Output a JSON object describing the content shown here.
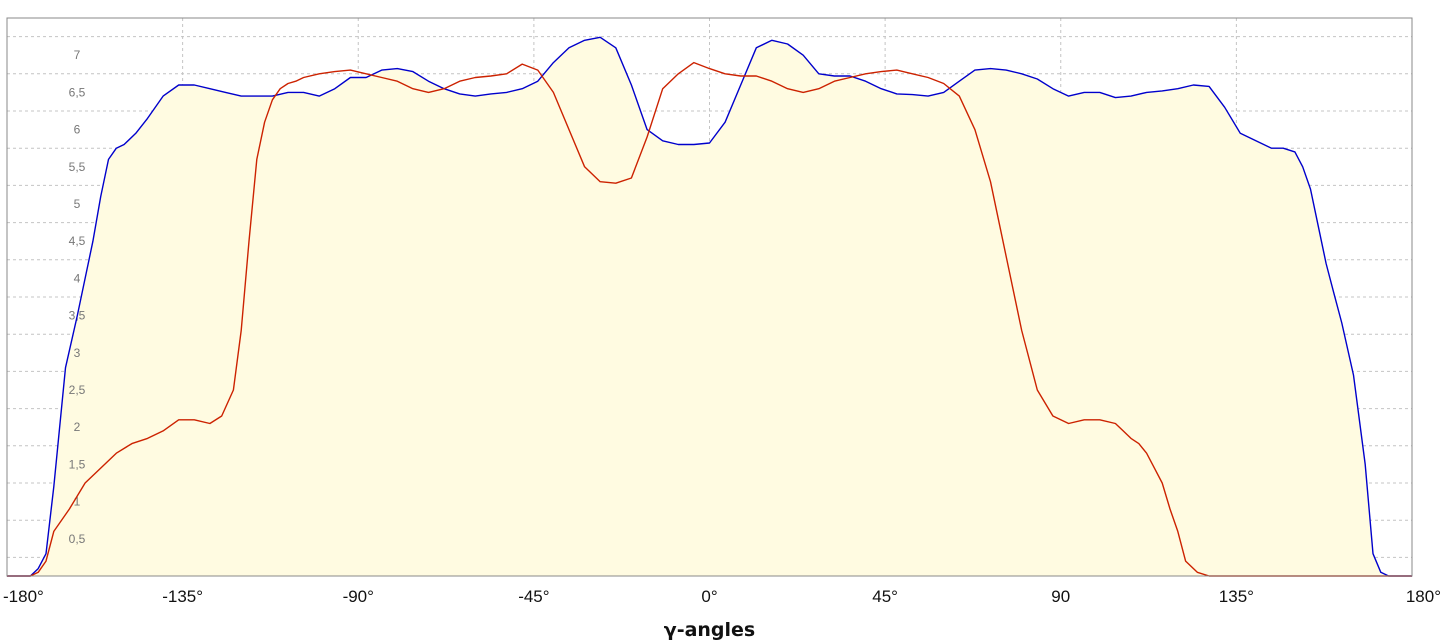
{
  "chart_data": {
    "type": "line",
    "xlabel": "γ-angles",
    "ylabel": "",
    "xlim": [
      -180,
      180
    ],
    "ylim": [
      0,
      7.5
    ],
    "grid": true,
    "legend": "none",
    "fill_color": "#FFFBE1",
    "x_ticks": [
      {
        "value": -180,
        "label": "-180°"
      },
      {
        "value": -135,
        "label": "-135°"
      },
      {
        "value": -90,
        "label": "-90°"
      },
      {
        "value": -45,
        "label": "-45°"
      },
      {
        "value": 0,
        "label": "0°"
      },
      {
        "value": 45,
        "label": "45°"
      },
      {
        "value": 90,
        "label": "90"
      },
      {
        "value": 135,
        "label": "135°"
      },
      {
        "value": 180,
        "label": "180°"
      }
    ],
    "y_ticks": [
      {
        "value": 0.5,
        "label": "0,5"
      },
      {
        "value": 1,
        "label": "1"
      },
      {
        "value": 1.5,
        "label": "1,5"
      },
      {
        "value": 2,
        "label": "2"
      },
      {
        "value": 2.5,
        "label": "2,5"
      },
      {
        "value": 3,
        "label": "3"
      },
      {
        "value": 3.5,
        "label": "3,5"
      },
      {
        "value": 4,
        "label": "4"
      },
      {
        "value": 4.5,
        "label": "4,5"
      },
      {
        "value": 5,
        "label": "5"
      },
      {
        "value": 5.5,
        "label": "5,5"
      },
      {
        "value": 6,
        "label": "6"
      },
      {
        "value": 6.5,
        "label": "6,5"
      },
      {
        "value": 7,
        "label": "7"
      }
    ],
    "series": [
      {
        "color": "#0000CC",
        "x": [
          -180,
          -176,
          -174,
          -172,
          -170,
          -168,
          -165,
          -162,
          -160,
          -158,
          -156,
          -154,
          -152,
          -150,
          -147,
          -144,
          -140,
          -136,
          -132,
          -128,
          -124,
          -120,
          -116,
          -112,
          -108,
          -104,
          -100,
          -96,
          -92,
          -88,
          -84,
          -80,
          -76,
          -72,
          -68,
          -64,
          -60,
          -56,
          -52,
          -48,
          -44,
          -40,
          -36,
          -32,
          -28,
          -24,
          -20,
          -16,
          -12,
          -8,
          -4,
          0,
          4,
          8,
          12,
          16,
          20,
          24,
          28,
          32,
          36,
          40,
          44,
          48,
          52,
          56,
          60,
          64,
          68,
          72,
          76,
          80,
          84,
          88,
          92,
          96,
          100,
          104,
          108,
          112,
          116,
          120,
          124,
          128,
          132,
          136,
          140,
          144,
          147,
          150,
          152,
          154,
          156,
          158,
          160,
          162,
          165,
          168,
          170,
          172,
          174,
          176,
          180
        ],
        "y": [
          0,
          0,
          0,
          0.1,
          0.3,
          1.2,
          2.8,
          3.5,
          4.0,
          4.5,
          5.1,
          5.6,
          5.75,
          5.8,
          5.95,
          6.15,
          6.45,
          6.6,
          6.6,
          6.55,
          6.5,
          6.45,
          6.45,
          6.45,
          6.5,
          6.5,
          6.45,
          6.55,
          6.7,
          6.7,
          6.8,
          6.82,
          6.78,
          6.65,
          6.55,
          6.48,
          6.45,
          6.48,
          6.5,
          6.55,
          6.65,
          6.9,
          7.1,
          7.2,
          7.24,
          7.1,
          6.6,
          6.0,
          5.85,
          5.8,
          5.8,
          5.82,
          6.1,
          6.6,
          7.1,
          7.2,
          7.15,
          7.0,
          6.75,
          6.72,
          6.72,
          6.65,
          6.55,
          6.48,
          6.47,
          6.45,
          6.5,
          6.65,
          6.8,
          6.82,
          6.8,
          6.75,
          6.68,
          6.55,
          6.45,
          6.5,
          6.5,
          6.43,
          6.45,
          6.5,
          6.52,
          6.55,
          6.6,
          6.58,
          6.3,
          5.95,
          5.85,
          5.75,
          5.75,
          5.7,
          5.5,
          5.2,
          4.7,
          4.2,
          3.8,
          3.4,
          2.7,
          1.5,
          0.3,
          0.05,
          0,
          0,
          0
        ]
      },
      {
        "color": "#CC2200",
        "x": [
          -180,
          -176,
          -174,
          -172,
          -170,
          -168,
          -164,
          -160,
          -156,
          -152,
          -148,
          -144,
          -140,
          -136,
          -132,
          -128,
          -125,
          -122,
          -120,
          -118,
          -116,
          -114,
          -112,
          -110,
          -108,
          -106,
          -104,
          -100,
          -96,
          -92,
          -88,
          -84,
          -80,
          -76,
          -72,
          -68,
          -64,
          -60,
          -56,
          -52,
          -48,
          -44,
          -40,
          -36,
          -32,
          -28,
          -24,
          -20,
          -16,
          -12,
          -8,
          -4,
          0,
          4,
          8,
          12,
          16,
          20,
          24,
          28,
          32,
          36,
          40,
          44,
          48,
          52,
          56,
          60,
          64,
          68,
          72,
          76,
          80,
          84,
          88,
          92,
          96,
          100,
          104,
          106,
          108,
          110,
          112,
          114,
          116,
          118,
          120,
          122,
          125,
          128,
          132,
          136,
          140,
          144,
          148,
          152,
          156,
          160,
          164,
          168,
          170,
          172,
          174,
          176,
          180
        ],
        "y": [
          0,
          0,
          0,
          0.05,
          0.2,
          0.6,
          0.9,
          1.25,
          1.45,
          1.65,
          1.78,
          1.85,
          1.95,
          2.1,
          2.1,
          2.05,
          2.15,
          2.5,
          3.3,
          4.5,
          5.6,
          6.1,
          6.4,
          6.55,
          6.62,
          6.65,
          6.7,
          6.75,
          6.78,
          6.8,
          6.75,
          6.7,
          6.65,
          6.55,
          6.5,
          6.55,
          6.65,
          6.7,
          6.72,
          6.75,
          6.88,
          6.8,
          6.5,
          6.0,
          5.5,
          5.3,
          5.28,
          5.35,
          5.9,
          6.55,
          6.75,
          6.9,
          6.82,
          6.75,
          6.72,
          6.72,
          6.65,
          6.55,
          6.5,
          6.55,
          6.65,
          6.7,
          6.75,
          6.78,
          6.8,
          6.75,
          6.7,
          6.62,
          6.45,
          6.0,
          5.3,
          4.3,
          3.3,
          2.5,
          2.15,
          2.05,
          2.1,
          2.1,
          2.05,
          1.95,
          1.85,
          1.78,
          1.65,
          1.45,
          1.25,
          0.9,
          0.6,
          0.2,
          0.05,
          0,
          0,
          0,
          0,
          0,
          0,
          0,
          0,
          0,
          0,
          0,
          0,
          0,
          0,
          0,
          0
        ]
      }
    ]
  }
}
